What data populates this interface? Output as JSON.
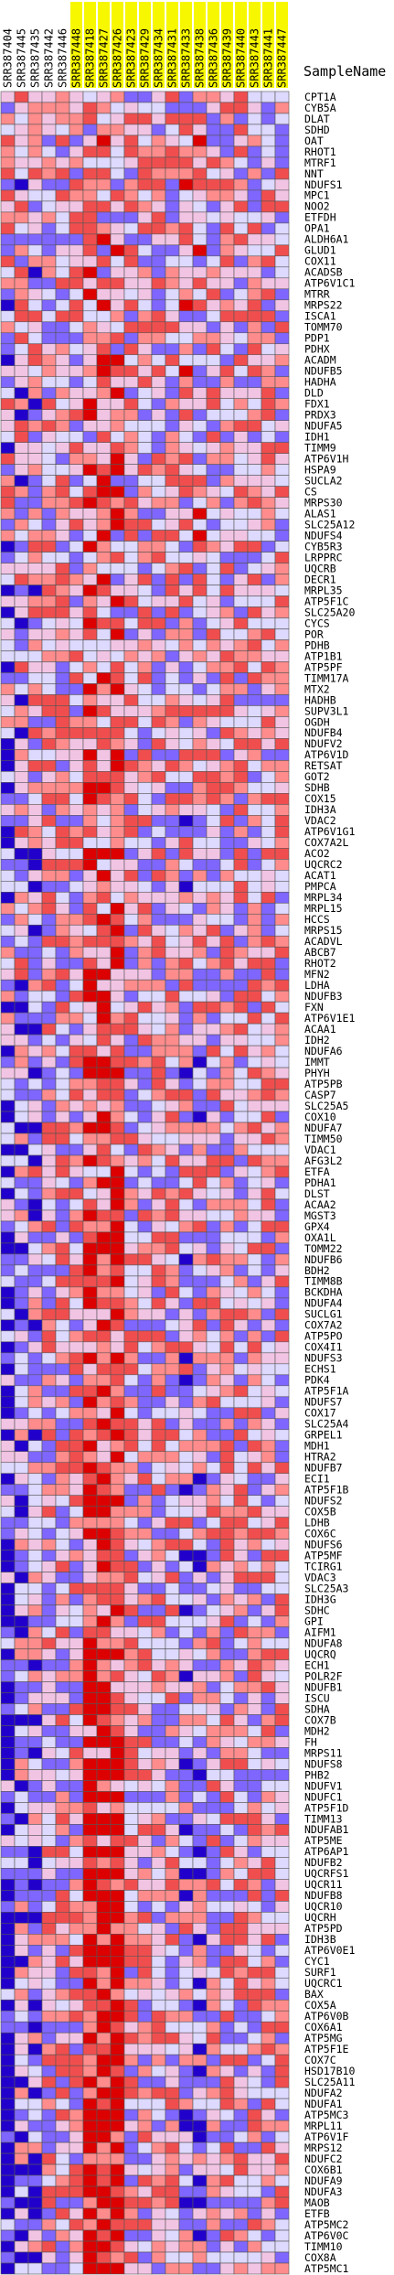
{
  "chart_data": {
    "type": "heatmap",
    "title": "",
    "xlabel": "",
    "ylabel": "",
    "legend_text": "SampleName",
    "colors": {
      "lowest": "#2200cc",
      "low": "#7f66ff",
      "below": "#ddd9ff",
      "neutral_pink": "#f2c4e4",
      "above": "#ff8c8c",
      "high": "#f04e4e",
      "highest": "#dd0000",
      "sample_label_bg": "#f7f700"
    },
    "value_range": [
      -3,
      3
    ],
    "samples": [
      "SRR387404",
      "SRR387445",
      "SRR387435",
      "SRR387442",
      "SRR387446",
      "SRR387448",
      "SRR387418",
      "SRR387427",
      "SRR387426",
      "SRR387423",
      "SRR387429",
      "SRR387434",
      "SRR387431",
      "SRR387433",
      "SRR387438",
      "SRR387436",
      "SRR387439",
      "SRR387440",
      "SRR387443",
      "SRR387441",
      "SRR387447"
    ],
    "sample_label_highlight": [
      false,
      false,
      false,
      false,
      false,
      true,
      true,
      true,
      true,
      true,
      true,
      true,
      true,
      true,
      true,
      true,
      true,
      true,
      true,
      true,
      true
    ],
    "genes": [
      "CPT1A",
      "CYB5A",
      "DLAT",
      "SDHD",
      "OAT",
      "RHOT1",
      "MTRF1",
      "NNT",
      "NDUFS1",
      "MPC1",
      "NOO2",
      "ETFDH",
      "OPA1",
      "ALDH6A1",
      "GLUD1",
      "COX11",
      "ACADSB",
      "ATP6V1C1",
      "MTRR",
      "MRPS22",
      "ISCA1",
      "TOMM70",
      "PDP1",
      "PDHX",
      "ACADM",
      "NDUFB5",
      "HADHA",
      "DLD",
      "FDX1",
      "PRDX3",
      "NDUFA5",
      "IDH1",
      "TIMM9",
      "ATP6V1H",
      "HSPA9",
      "SUCLA2",
      "CS",
      "MRPS30",
      "ALAS1",
      "SLC25A12",
      "NDUFS4",
      "CYB5R3",
      "LRPPRC",
      "UQCRB",
      "DECR1",
      "MRPL35",
      "ATP5F1C",
      "SLC25A20",
      "CYCS",
      "POR",
      "PDHB",
      "ATP1B1",
      "ATP5PF",
      "TIMM17A",
      "MTX2",
      "HADHB",
      "SUPV3L1",
      "OGDH",
      "NDUFB4",
      "NDUFV2",
      "ATP6V1D",
      "RETSAT",
      "GOT2",
      "SDHB",
      "COX15",
      "IDH3A",
      "VDAC2",
      "ATP6V1G1",
      "COX7A2L",
      "ACO2",
      "UQCRC2",
      "ACAT1",
      "PMPCA",
      "MRPL34",
      "MRPL15",
      "HCCS",
      "MRPS15",
      "ACADVL",
      "ABCB7",
      "RHOT2",
      "MFN2",
      "LDHA",
      "NDUFB3",
      "FXN",
      "ATP6V1E1",
      "ACAA1",
      "IDH2",
      "NDUFA6",
      "IMMT",
      "PHYH",
      "ATP5PB",
      "CASP7",
      "SLC25A5",
      "COX10",
      "NDUFA7",
      "TIMM50",
      "VDAC1",
      "AFG3L2",
      "ETFA",
      "PDHA1",
      "DLST",
      "ACAA2",
      "MGST3",
      "GPX4",
      "OXA1L",
      "TOMM22",
      "NDUFB6",
      "BDH2",
      "TIMM8B",
      "BCKDHA",
      "NDUFA4",
      "SUCLG1",
      "COX7A2",
      "ATP5PO",
      "COX4I1",
      "NDUFS3",
      "ECHS1",
      "PDK4",
      "ATP5F1A",
      "NDUFS7",
      "COX17",
      "SLC25A4",
      "GRPEL1",
      "MDH1",
      "HTRA2",
      "NDUFB7",
      "ECI1",
      "ATP5F1B",
      "NDUFS2",
      "COX5B",
      "LDHB",
      "COX6C",
      "NDUFS6",
      "ATP5MF",
      "TCIRG1",
      "VDAC3",
      "SLC25A3",
      "IDH3G",
      "SDHC",
      "GPI",
      "AIFM1",
      "NDUFA8",
      "UQCRQ",
      "ECH1",
      "POLR2F",
      "NDUFB1",
      "ISCU",
      "SDHA",
      "COX7B",
      "MDH2",
      "FH",
      "MRPS11",
      "NDUFS8",
      "PHB2",
      "NDUFV1",
      "NDUFC1",
      "ATP5F1D",
      "TIMM13",
      "NDUFAB1",
      "ATP5ME",
      "ATP6AP1",
      "NDUFB2",
      "UQCRFS1",
      "UQCR11",
      "NDUFB8",
      "UQCR10",
      "UQCRH",
      "ATP5PD",
      "IDH3B",
      "ATP6V0E1",
      "CYC1",
      "SURF1",
      "UQCRC1",
      "BAX",
      "COX5A",
      "ATP6V0B",
      "COX6A1",
      "ATP5MG",
      "ATP5F1E",
      "COX7C",
      "HSD17B10",
      "SLC25A11",
      "NDUFA2",
      "NDUFA1",
      "ATP5MC3",
      "MRPL11",
      "ATP6V1F",
      "MRPS12",
      "NDUFC2",
      "COX6B1",
      "NDUFA9",
      "NDUFA3",
      "MAOB",
      "ETFB",
      "ATP5MC2",
      "ATP6V0C",
      "TIMM10",
      "COX8A",
      "ATP5MC1"
    ],
    "seed": 20240611
  }
}
